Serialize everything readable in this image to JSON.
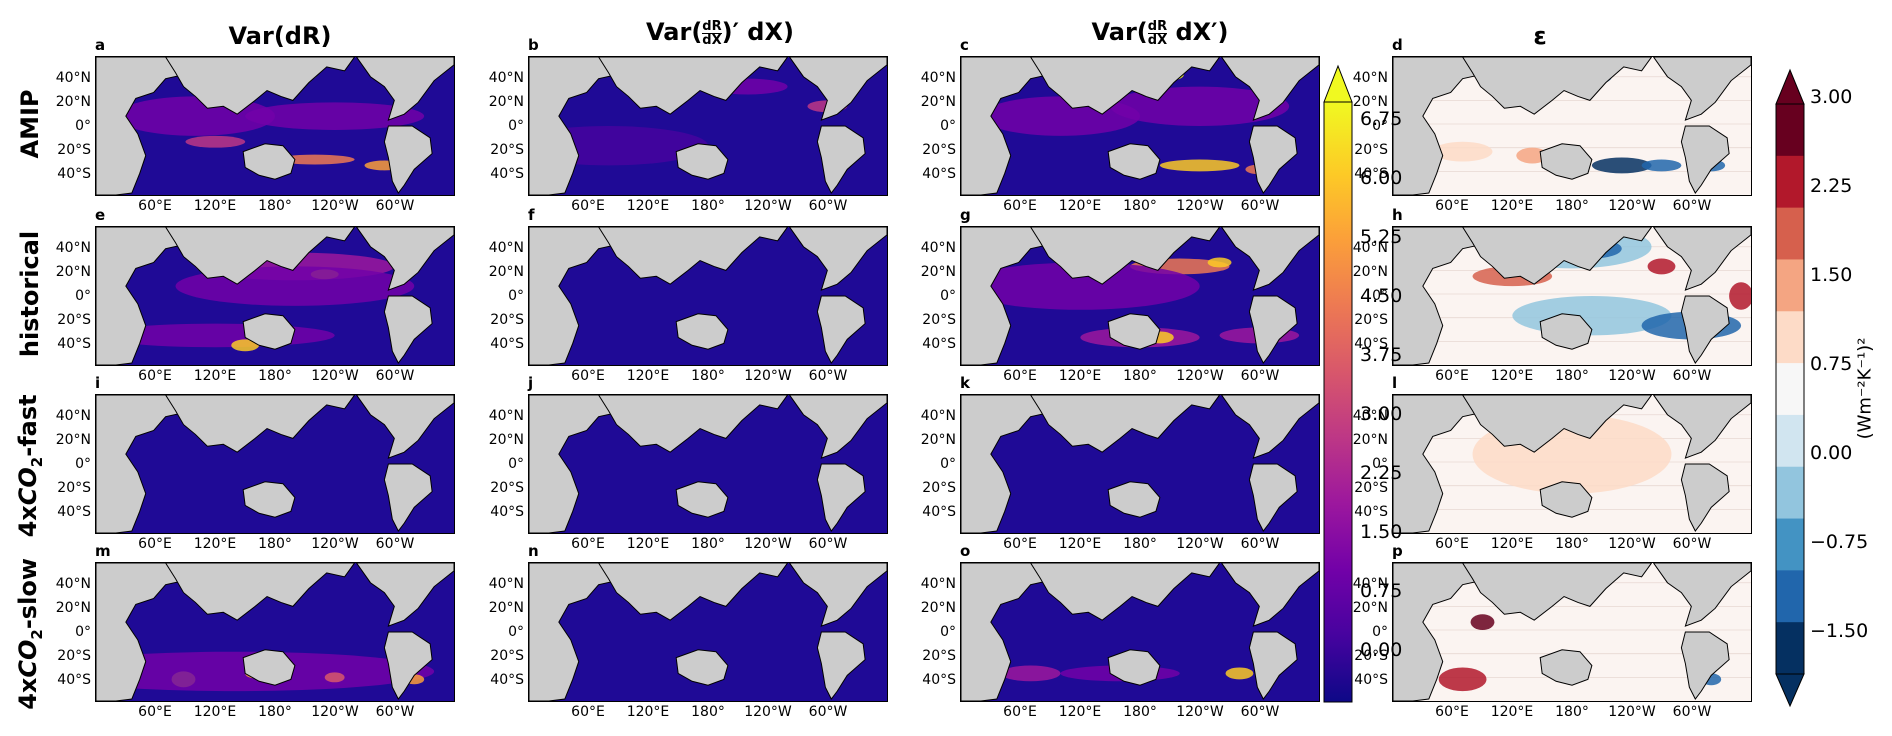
{
  "columns": [
    {
      "title": "Var(dR)"
    },
    {
      "title_prefix": "Var(",
      "title_frac_num": "dR",
      "title_frac_den": "dX",
      "title_suffix": ")′ dX)"
    },
    {
      "title_prefix": "Var(",
      "title_frac_num": "dR",
      "title_frac_den": "dX",
      "title_suffix": " dX′)"
    },
    {
      "title": "ε"
    }
  ],
  "rows": [
    {
      "label": "AMIP"
    },
    {
      "label": "historical"
    },
    {
      "label_pre": "4x",
      "label_co": "CO",
      "label_sub": "2",
      "label_post": "-fast"
    },
    {
      "label_pre": "4x",
      "label_co": "CO",
      "label_sub": "2",
      "label_post": "-slow"
    }
  ],
  "panel_letters": [
    [
      "a",
      "b",
      "c",
      "d"
    ],
    [
      "e",
      "f",
      "g",
      "h"
    ],
    [
      "i",
      "j",
      "k",
      "l"
    ],
    [
      "m",
      "n",
      "o",
      "p"
    ]
  ],
  "lat_ticks": [
    "40°N",
    "20°N",
    "0°",
    "20°S",
    "40°S"
  ],
  "lon_ticks": [
    "60°E",
    "120°E",
    "180°",
    "120°W",
    "60°W"
  ],
  "colorbar_var": {
    "ticks": [
      "6.75",
      "6.00",
      "5.25",
      "4.50",
      "3.75",
      "3.00",
      "2.25",
      "1.50",
      "0.75",
      "0.00"
    ],
    "colors": [
      "#0d0887",
      "#46039f",
      "#7201a8",
      "#9c179e",
      "#bd3786",
      "#d8576b",
      "#ed7953",
      "#fb9f3a",
      "#fdca26",
      "#f0f921"
    ]
  },
  "colorbar_eps": {
    "ticks": [
      "3.00",
      "2.25",
      "1.50",
      "0.75",
      "0.00",
      "−0.75",
      "−1.50"
    ],
    "label": "(Wm⁻²K⁻¹)²",
    "colors": [
      "#053061",
      "#2166ac",
      "#4393c3",
      "#92c5de",
      "#d1e5f0",
      "#f7f7f7",
      "#fddbc7",
      "#f4a582",
      "#d6604d",
      "#b2182b",
      "#67001f"
    ]
  }
}
